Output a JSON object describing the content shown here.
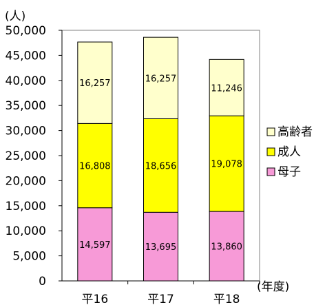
{
  "chart_data": {
    "type": "bar",
    "stacked": true,
    "y_unit": "(人)",
    "x_unit": "(年度)",
    "categories": [
      "平16",
      "平17",
      "平18"
    ],
    "series": [
      {
        "name": "母子",
        "color": "#f79ad7",
        "values": [
          14597,
          13695,
          13860
        ]
      },
      {
        "name": "成人",
        "color": "#ffff00",
        "values": [
          16808,
          18656,
          19078
        ]
      },
      {
        "name": "高齢者",
        "color": "#ffffcc",
        "values": [
          16257,
          16257,
          11246
        ]
      }
    ],
    "segment_labels": [
      [
        "14,597",
        "13,695",
        "13,860"
      ],
      [
        "16,808",
        "18,656",
        "19,078"
      ],
      [
        "16,257",
        "16,257",
        "11,246"
      ]
    ],
    "ylim": [
      0,
      50000
    ],
    "yticks": [
      0,
      5000,
      10000,
      15000,
      20000,
      25000,
      30000,
      35000,
      40000,
      45000,
      50000
    ],
    "ytick_labels": [
      "0",
      "5,000",
      "10,000",
      "15,000",
      "20,000",
      "25,000",
      "30,000",
      "35,000",
      "40,000",
      "45,000",
      "50,000"
    ],
    "legend_position": "right",
    "grid": false
  }
}
